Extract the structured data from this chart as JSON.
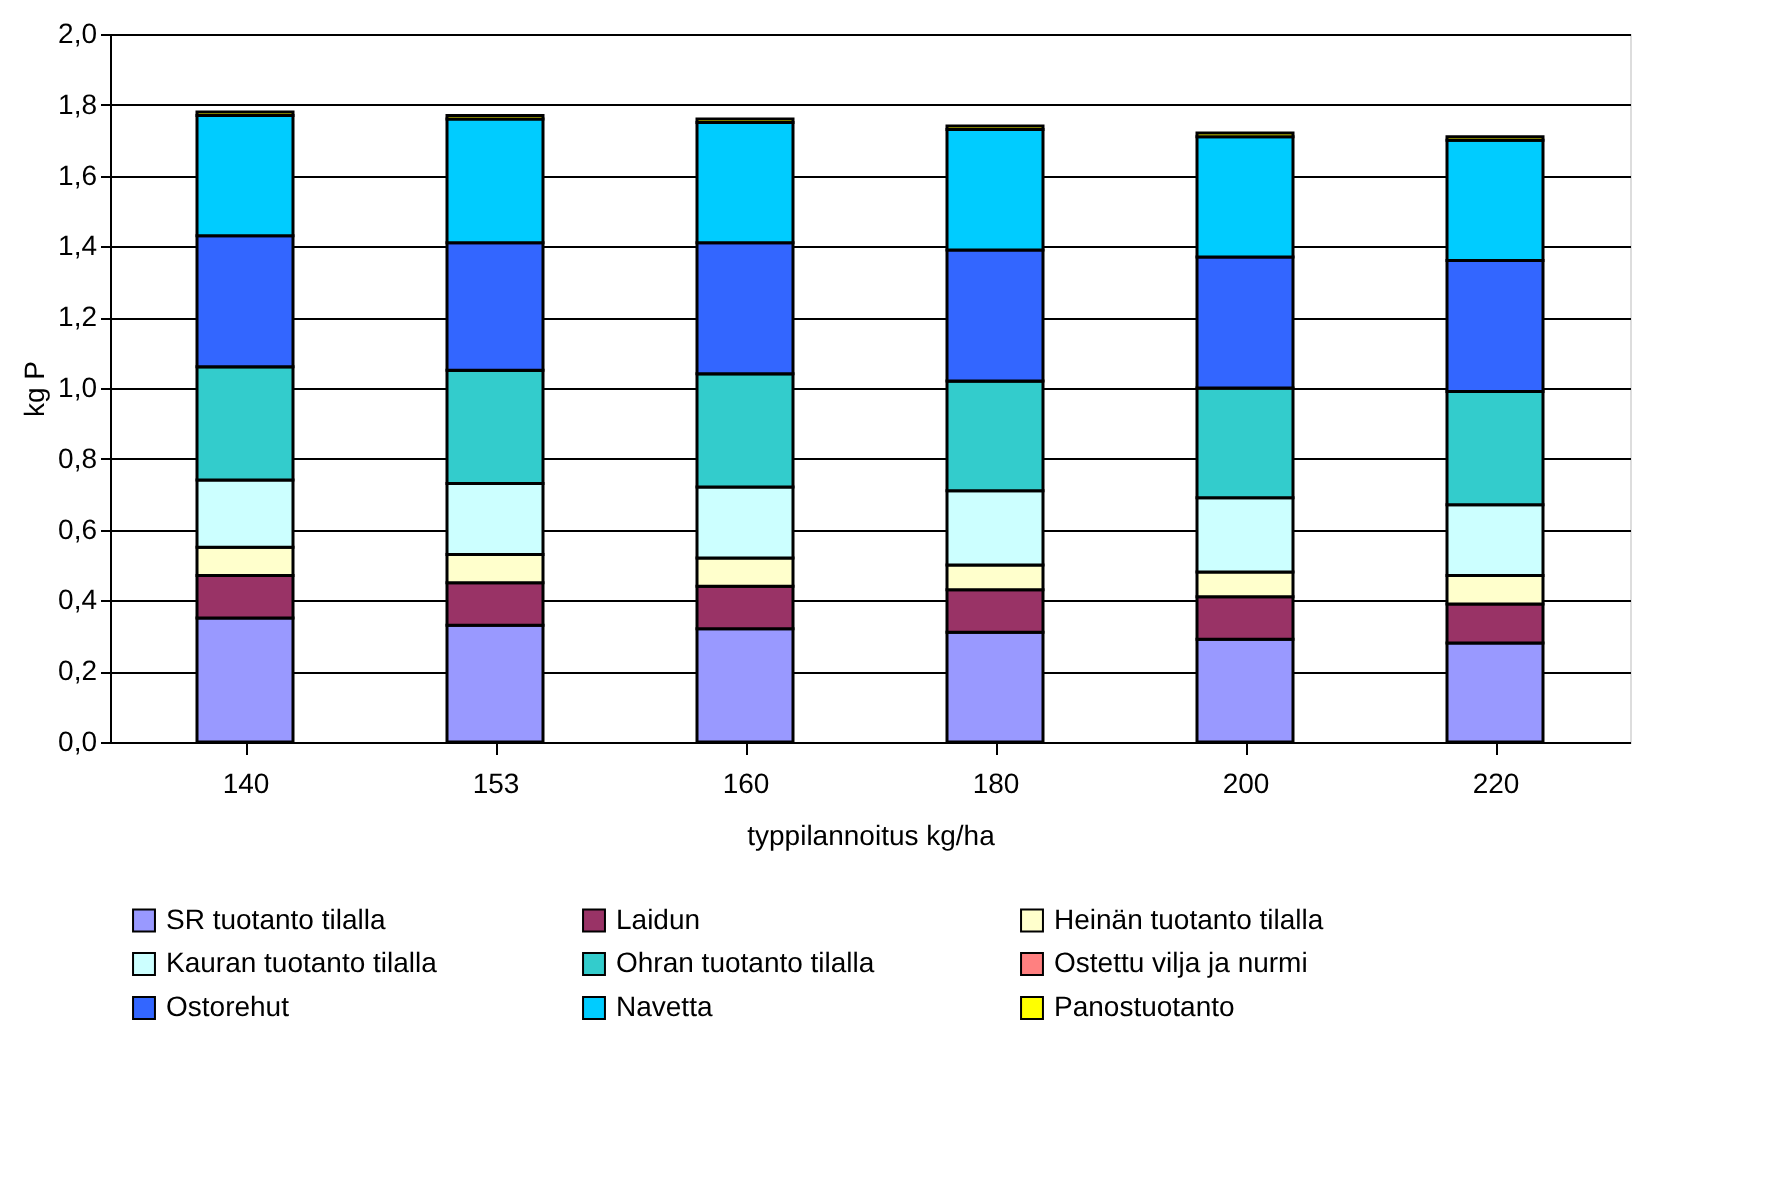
{
  "chart_data": {
    "type": "bar",
    "stacked": true,
    "xlabel": "typpilannoitus kg/ha",
    "ylabel": "kg P",
    "categories": [
      "140",
      "153",
      "160",
      "180",
      "200",
      "220"
    ],
    "series": [
      {
        "name": "SR tuotanto tilalla",
        "color": "#9999ff",
        "values": [
          0.35,
          0.33,
          0.32,
          0.31,
          0.29,
          0.28
        ]
      },
      {
        "name": "Laidun",
        "color": "#993366",
        "values": [
          0.12,
          0.12,
          0.12,
          0.12,
          0.12,
          0.11
        ]
      },
      {
        "name": "Heinän tuotanto tilalla",
        "color": "#ffffcc",
        "values": [
          0.08,
          0.08,
          0.08,
          0.07,
          0.07,
          0.08
        ]
      },
      {
        "name": "Kauran tuotanto tilalla",
        "color": "#ccffff",
        "values": [
          0.19,
          0.2,
          0.2,
          0.21,
          0.21,
          0.2
        ]
      },
      {
        "name": "Ohran tuotanto tilalla",
        "color": "#33cccc",
        "values": [
          0.32,
          0.32,
          0.32,
          0.31,
          0.31,
          0.32
        ]
      },
      {
        "name": "Ostettu vilja ja nurmi",
        "color": "#ff8080",
        "values": [
          0,
          0,
          0,
          0,
          0,
          0
        ]
      },
      {
        "name": "Ostorehut",
        "color": "#3366ff",
        "values": [
          0.37,
          0.36,
          0.37,
          0.37,
          0.37,
          0.37
        ]
      },
      {
        "name": "Navetta",
        "color": "#00ccff",
        "values": [
          0.34,
          0.35,
          0.34,
          0.34,
          0.34,
          0.34
        ]
      },
      {
        "name": "Panostuotanto",
        "color": "#ffff00",
        "values": [
          0.01,
          0.01,
          0.01,
          0.01,
          0.01,
          0.01
        ]
      }
    ],
    "ylim": [
      0,
      2.0
    ],
    "yticks": [
      {
        "value": 0,
        "label": "0,0"
      },
      {
        "value": 0.2,
        "label": "0,2"
      },
      {
        "value": 0.4,
        "label": "0,4"
      },
      {
        "value": 0.6,
        "label": "0,6"
      },
      {
        "value": 0.8,
        "label": "0,8"
      },
      {
        "value": 1.0,
        "label": "1,0"
      },
      {
        "value": 1.2,
        "label": "1,2"
      },
      {
        "value": 1.4,
        "label": "1,4"
      },
      {
        "value": 1.6,
        "label": "1,6"
      },
      {
        "value": 1.8,
        "label": "1,8"
      },
      {
        "value": 2.0,
        "label": "2,0"
      }
    ],
    "grid": "y",
    "legend": "bottom"
  }
}
